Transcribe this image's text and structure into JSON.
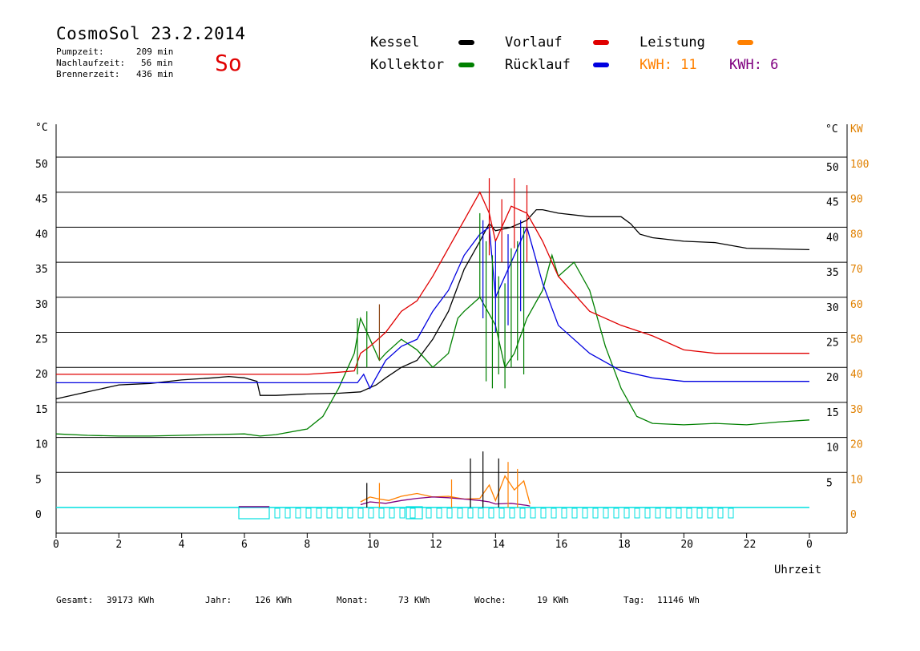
{
  "header": {
    "title": "CosmoSol 23.2.2014",
    "day": "So",
    "info": [
      {
        "label": "Pumpzeit:",
        "value": "209 min"
      },
      {
        "label": "Nachlaufzeit:",
        "value": "56 min"
      },
      {
        "label": "Brennerzeit:",
        "value": "436 min"
      }
    ]
  },
  "legend": {
    "kessel": "Kessel",
    "kollektor": "Kollektor",
    "vorlauf": "Vorlauf",
    "ruecklauf": "Rücklauf",
    "leistung": "Leistung",
    "kwh1": "KWH: 11",
    "kwh2": "KWH: 6"
  },
  "footer": {
    "gesamt_label": "Gesamt:",
    "gesamt_value": "39173 KWh",
    "jahr_label": "Jahr:",
    "jahr_value": "126 KWh",
    "monat_label": "Monat:",
    "monat_value": "73 KWh",
    "woche_label": "Woche:",
    "woche_value": "19 KWh",
    "tag_label": "Tag:",
    "tag_value": "11146 Wh"
  },
  "colors": {
    "kessel": "#000000",
    "kollektor": "#008000",
    "vorlauf": "#e00000",
    "ruecklauf": "#0000e0",
    "leistung": "#ff8000",
    "kwh2": "#800080",
    "pump": "#00e0e0"
  },
  "chart_data": {
    "type": "line",
    "xlabel": "Uhrzeit",
    "ylabel_left": "°C",
    "ylabel_right_1": "°C",
    "ylabel_right_2": "KW",
    "xlim": [
      0,
      24
    ],
    "ylim": [
      0,
      50
    ],
    "x_ticks": [
      "0",
      "2",
      "4",
      "6",
      "8",
      "10",
      "12",
      "14",
      "16",
      "18",
      "20",
      "22",
      "0"
    ],
    "y_ticks_left": [
      "0",
      "5",
      "10",
      "15",
      "20",
      "25",
      "30",
      "35",
      "40",
      "45",
      "50"
    ],
    "y_ticks_right": [
      "5",
      "10",
      "15",
      "20",
      "25",
      "30",
      "35",
      "40",
      "45",
      "50"
    ],
    "y_ticks_kw": [
      "0",
      "10",
      "20",
      "30",
      "40",
      "50",
      "60",
      "70",
      "80",
      "90",
      "100"
    ],
    "series": [
      {
        "name": "Kessel",
        "color": "#000000",
        "x": [
          0,
          1,
          2,
          3,
          4,
          5,
          5.5,
          6,
          6.4,
          6.5,
          7,
          8,
          9,
          9.7,
          10.2,
          10.5,
          11,
          11.5,
          12,
          12.5,
          13,
          13.5,
          13.8,
          14,
          14.5,
          15,
          15.3,
          15.5,
          16,
          17,
          18,
          18.3,
          18.6,
          19,
          20,
          21,
          22,
          23,
          24
        ],
        "y": [
          15.5,
          16.5,
          17.5,
          17.7,
          18.2,
          18.5,
          18.7,
          18.5,
          18,
          16,
          16,
          16.2,
          16.3,
          16.5,
          17.5,
          18.5,
          20,
          21,
          24,
          28,
          34,
          38,
          40.5,
          39.5,
          40,
          41,
          42.5,
          42.5,
          42,
          41.5,
          41.5,
          40.5,
          39,
          38.5,
          38,
          37.8,
          37,
          36.9,
          36.8
        ]
      },
      {
        "name": "Kollektor",
        "color": "#008000",
        "x": [
          0,
          1,
          2,
          3,
          4,
          5,
          6,
          6.5,
          7,
          8,
          8.5,
          9,
          9.5,
          9.7,
          10,
          10.3,
          10.5,
          11,
          11.5,
          12,
          12.5,
          12.8,
          13,
          13.5,
          14,
          14.3,
          14.6,
          15,
          15.5,
          15.8,
          16,
          16.5,
          17,
          17.5,
          18,
          18.5,
          19,
          20,
          21,
          22,
          23,
          24
        ],
        "y": [
          10.5,
          10.3,
          10.2,
          10.2,
          10.3,
          10.4,
          10.5,
          10.2,
          10.4,
          11.2,
          13,
          17,
          22,
          27,
          24,
          21,
          22,
          24,
          22.5,
          20,
          22,
          27,
          28,
          30,
          26,
          20,
          22,
          27,
          31,
          36,
          33,
          35,
          31,
          23,
          17,
          13,
          12,
          11.8,
          12,
          11.8,
          12.2,
          12.5
        ]
      },
      {
        "name": "Vorlauf",
        "color": "#e00000",
        "x": [
          0,
          1,
          2,
          3,
          4,
          5,
          6,
          7,
          8,
          9,
          9.5,
          9.7,
          10,
          10.5,
          11,
          11.5,
          12,
          12.5,
          13,
          13.5,
          13.8,
          14,
          14.5,
          15,
          15.5,
          16,
          17,
          18,
          19,
          20,
          21,
          22,
          23,
          24
        ],
        "y": [
          19,
          19,
          19,
          19,
          19,
          19,
          19,
          19,
          19,
          19.3,
          19.5,
          22,
          23,
          25,
          28,
          29.5,
          33,
          37,
          41,
          45,
          42,
          38,
          43,
          42,
          38,
          33,
          28,
          26,
          24.5,
          22.5,
          22,
          22,
          22,
          22
        ]
      },
      {
        "name": "Rücklauf",
        "color": "#0000e0",
        "x": [
          0,
          1,
          2,
          3,
          4,
          5,
          6,
          7,
          8,
          9,
          9.6,
          9.8,
          10,
          10.5,
          11,
          11.5,
          12,
          12.5,
          13,
          13.5,
          13.8,
          14,
          14.5,
          15,
          15.5,
          16,
          17,
          18,
          19,
          20,
          21,
          22,
          23,
          24
        ],
        "y": [
          17.8,
          17.8,
          17.8,
          17.8,
          17.8,
          17.8,
          17.8,
          17.8,
          17.8,
          17.8,
          17.8,
          19,
          17,
          21,
          23,
          24,
          28,
          31,
          36,
          39,
          40,
          30,
          35,
          40,
          32,
          26,
          22,
          19.5,
          18.5,
          18,
          18,
          18,
          18,
          18
        ]
      },
      {
        "name": "Leistung",
        "color": "#ff8000",
        "x": [
          9.7,
          10,
          10.3,
          10.6,
          11,
          11.5,
          12,
          12.5,
          13,
          13.5,
          13.8,
          14,
          14.3,
          14.6,
          14.9,
          15.1
        ],
        "y": [
          0.8,
          1.5,
          1.2,
          1.0,
          1.6,
          2.0,
          1.5,
          1.6,
          1.2,
          1.3,
          3.2,
          1.0,
          4.5,
          2.5,
          3.8,
          0.5
        ]
      },
      {
        "name": "KWH2",
        "color": "#800080",
        "x": [
          9.7,
          10,
          10.5,
          11,
          11.5,
          12,
          12.5,
          13,
          13.5,
          13.8,
          14,
          14.5,
          15,
          15.1
        ],
        "y": [
          0.4,
          0.8,
          0.6,
          1.0,
          1.3,
          1.5,
          1.4,
          1.2,
          1.0,
          0.8,
          0.5,
          0.6,
          0.3,
          0.2
        ]
      }
    ]
  }
}
